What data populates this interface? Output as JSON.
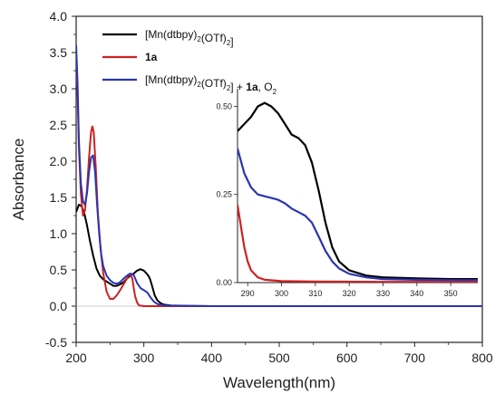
{
  "chart_data": [
    {
      "type": "line",
      "xlabel": "Wavelength(nm)",
      "ylabel": "Absorbance",
      "xlim": [
        200,
        800
      ],
      "ylim": [
        -0.5,
        4.0
      ],
      "xticks": [
        200,
        300,
        400,
        500,
        600,
        700,
        800
      ],
      "yticks": [
        -0.5,
        0.0,
        0.5,
        1.0,
        1.5,
        2.0,
        2.5,
        3.0,
        3.5,
        4.0
      ],
      "xtick_labels": [
        "200",
        "300",
        "400",
        "500",
        "600",
        "700",
        "800"
      ],
      "ytick_labels": [
        "-0.5",
        "0.0",
        "0.5",
        "1.0",
        "1.5",
        "2.0",
        "2.5",
        "3.0",
        "3.5",
        "4.0"
      ],
      "legend": {
        "placement": "top-right",
        "entries": [
          {
            "series": 0,
            "parts": [
              {
                "t": "[Mn(dtbpy)"
              },
              {
                "t": "2",
                "sub": true
              },
              {
                "t": "(OTf)"
              },
              {
                "t": "2",
                "sub": true
              },
              {
                "t": "]"
              }
            ]
          },
          {
            "series": 1,
            "parts": [
              {
                "t": "1a",
                "bold": true
              }
            ]
          },
          {
            "series": 2,
            "parts": [
              {
                "t": "[Mn(dtbpy)"
              },
              {
                "t": "2",
                "sub": true
              },
              {
                "t": "(OTf)"
              },
              {
                "t": "2",
                "sub": true
              },
              {
                "t": "] + "
              },
              {
                "t": "1a",
                "bold": true
              },
              {
                "t": ", O"
              },
              {
                "t": "2",
                "sub": true
              }
            ]
          }
        ]
      },
      "series": [
        {
          "name": "[Mn(dtbpy)2(OTf)2]",
          "color": "#000000",
          "points": [
            [
              200,
              1.3
            ],
            [
              204,
              1.4
            ],
            [
              208,
              1.38
            ],
            [
              212,
              1.28
            ],
            [
              216,
              1.12
            ],
            [
              220,
              0.92
            ],
            [
              225,
              0.7
            ],
            [
              230,
              0.52
            ],
            [
              235,
              0.42
            ],
            [
              240,
              0.37
            ],
            [
              245,
              0.34
            ],
            [
              250,
              0.31
            ],
            [
              255,
              0.28
            ],
            [
              260,
              0.28
            ],
            [
              265,
              0.3
            ],
            [
              270,
              0.33
            ],
            [
              275,
              0.38
            ],
            [
              280,
              0.42
            ],
            [
              285,
              0.45
            ],
            [
              290,
              0.49
            ],
            [
              295,
              0.51
            ],
            [
              300,
              0.49
            ],
            [
              305,
              0.44
            ],
            [
              308,
              0.4
            ],
            [
              310,
              0.35
            ],
            [
              313,
              0.25
            ],
            [
              316,
              0.15
            ],
            [
              320,
              0.08
            ],
            [
              325,
              0.04
            ],
            [
              330,
              0.02
            ],
            [
              340,
              0.01
            ],
            [
              360,
              0.005
            ],
            [
              400,
              0.0
            ],
            [
              500,
              0.0
            ],
            [
              600,
              0.0
            ],
            [
              700,
              0.0
            ],
            [
              800,
              0.0
            ]
          ]
        },
        {
          "name": "1a",
          "color": "#d02020",
          "points": [
            [
              200,
              3.3
            ],
            [
              202,
              3.0
            ],
            [
              204,
              2.2
            ],
            [
              207,
              1.55
            ],
            [
              210,
              1.25
            ],
            [
              213,
              1.32
            ],
            [
              216,
              1.6
            ],
            [
              219,
              2.05
            ],
            [
              222,
              2.4
            ],
            [
              224,
              2.48
            ],
            [
              226,
              2.4
            ],
            [
              229,
              1.9
            ],
            [
              232,
              1.3
            ],
            [
              236,
              0.8
            ],
            [
              240,
              0.45
            ],
            [
              245,
              0.2
            ],
            [
              250,
              0.1
            ],
            [
              255,
              0.1
            ],
            [
              260,
              0.15
            ],
            [
              265,
              0.22
            ],
            [
              270,
              0.3
            ],
            [
              275,
              0.38
            ],
            [
              278,
              0.43
            ],
            [
              280,
              0.44
            ],
            [
              283,
              0.38
            ],
            [
              285,
              0.25
            ],
            [
              287,
              0.14
            ],
            [
              290,
              0.05
            ],
            [
              293,
              0.01
            ],
            [
              300,
              0.0
            ],
            [
              400,
              0.0
            ],
            [
              500,
              0.0
            ],
            [
              600,
              0.0
            ],
            [
              700,
              0.0
            ],
            [
              800,
              0.0
            ]
          ]
        },
        {
          "name": "[Mn(dtbpy)2(OTf)2] + 1a, O2",
          "color": "#2b35b0",
          "points": [
            [
              200,
              3.6
            ],
            [
              202,
              3.1
            ],
            [
              204,
              2.3
            ],
            [
              207,
              1.7
            ],
            [
              210,
              1.45
            ],
            [
              213,
              1.4
            ],
            [
              216,
              1.55
            ],
            [
              219,
              1.85
            ],
            [
              222,
              2.05
            ],
            [
              225,
              2.08
            ],
            [
              228,
              1.85
            ],
            [
              231,
              1.4
            ],
            [
              234,
              1.0
            ],
            [
              237,
              0.72
            ],
            [
              240,
              0.55
            ],
            [
              245,
              0.42
            ],
            [
              250,
              0.36
            ],
            [
              255,
              0.32
            ],
            [
              260,
              0.31
            ],
            [
              265,
              0.33
            ],
            [
              270,
              0.38
            ],
            [
              275,
              0.42
            ],
            [
              280,
              0.45
            ],
            [
              285,
              0.43
            ],
            [
              290,
              0.32
            ],
            [
              295,
              0.25
            ],
            [
              300,
              0.22
            ],
            [
              305,
              0.19
            ],
            [
              310,
              0.12
            ],
            [
              315,
              0.06
            ],
            [
              320,
              0.03
            ],
            [
              330,
              0.01
            ],
            [
              350,
              0.005
            ],
            [
              400,
              0.0
            ],
            [
              500,
              0.0
            ],
            [
              600,
              0.0
            ],
            [
              700,
              0.0
            ],
            [
              800,
              0.0
            ]
          ]
        }
      ]
    },
    {
      "type": "line",
      "role": "inset",
      "xlim": [
        287,
        358
      ],
      "ylim": [
        0.0,
        0.55
      ],
      "xticks": [
        290,
        300,
        310,
        320,
        330,
        340,
        350
      ],
      "yticks": [
        0.0,
        0.25,
        0.5
      ],
      "xtick_labels": [
        "290",
        "300",
        "310",
        "320",
        "330",
        "340",
        "350"
      ],
      "ytick_labels": [
        "0.00",
        "0.25",
        "0.50"
      ],
      "series": [
        {
          "name": "[Mn(dtbpy)2(OTf)2]",
          "color": "#000000",
          "points": [
            [
              287,
              0.43
            ],
            [
              289,
              0.45
            ],
            [
              291,
              0.47
            ],
            [
              293,
              0.5
            ],
            [
              295,
              0.51
            ],
            [
              297,
              0.5
            ],
            [
              299,
              0.48
            ],
            [
              301,
              0.45
            ],
            [
              303,
              0.42
            ],
            [
              305,
              0.41
            ],
            [
              307,
              0.39
            ],
            [
              309,
              0.34
            ],
            [
              311,
              0.26
            ],
            [
              313,
              0.17
            ],
            [
              315,
              0.1
            ],
            [
              317,
              0.06
            ],
            [
              320,
              0.035
            ],
            [
              325,
              0.02
            ],
            [
              330,
              0.015
            ],
            [
              340,
              0.012
            ],
            [
              350,
              0.01
            ],
            [
              358,
              0.01
            ]
          ]
        },
        {
          "name": "1a",
          "color": "#d02020",
          "points": [
            [
              287,
              0.22
            ],
            [
              288,
              0.16
            ],
            [
              289,
              0.1
            ],
            [
              290,
              0.06
            ],
            [
              291,
              0.035
            ],
            [
              293,
              0.015
            ],
            [
              295,
              0.008
            ],
            [
              300,
              0.004
            ],
            [
              310,
              0.003
            ],
            [
              330,
              0.002
            ],
            [
              358,
              0.002
            ]
          ]
        },
        {
          "name": "[Mn(dtbpy)2(OTf)2] + 1a, O2",
          "color": "#2b35b0",
          "points": [
            [
              287,
              0.38
            ],
            [
              289,
              0.31
            ],
            [
              291,
              0.27
            ],
            [
              293,
              0.25
            ],
            [
              295,
              0.245
            ],
            [
              297,
              0.24
            ],
            [
              299,
              0.235
            ],
            [
              301,
              0.225
            ],
            [
              303,
              0.21
            ],
            [
              305,
              0.2
            ],
            [
              307,
              0.19
            ],
            [
              309,
              0.17
            ],
            [
              311,
              0.13
            ],
            [
              313,
              0.09
            ],
            [
              315,
              0.06
            ],
            [
              317,
              0.04
            ],
            [
              320,
              0.025
            ],
            [
              325,
              0.015
            ],
            [
              330,
              0.01
            ],
            [
              340,
              0.008
            ],
            [
              350,
              0.007
            ],
            [
              358,
              0.007
            ]
          ]
        }
      ]
    }
  ]
}
